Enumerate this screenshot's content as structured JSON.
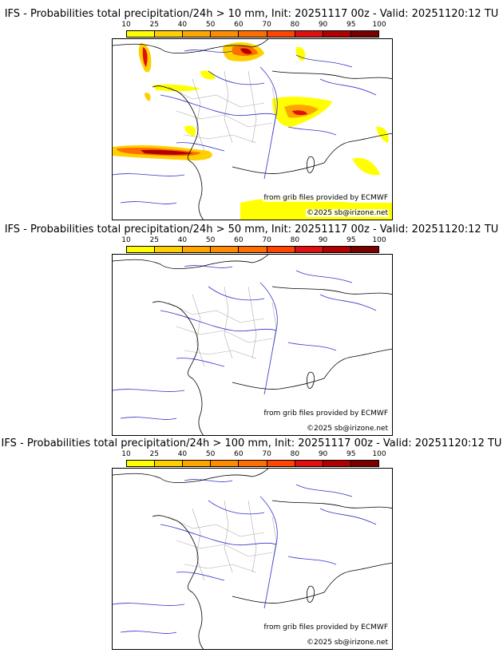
{
  "colorbar": {
    "ticks": [
      "10",
      "25",
      "40",
      "50",
      "60",
      "70",
      "80",
      "90",
      "95",
      "100"
    ],
    "colors": [
      "#ffff00",
      "#ffd000",
      "#ffa500",
      "#ff8c00",
      "#ff6e00",
      "#ff4500",
      "#e01010",
      "#b00000",
      "#7a0000"
    ]
  },
  "credits": {
    "source": "from grib files provided by ECMWF",
    "copyright": "©2025 sb@irizone.net"
  },
  "panels": [
    {
      "title": "IFS - Probabilities total precipitation/24h > 10 mm, Init: 20251117 00z - Valid: 20251120:12 TU"
    },
    {
      "title": "IFS - Probabilities total precipitation/24h > 50 mm, Init: 20251117 00z - Valid: 20251120:12 TU"
    },
    {
      "title": "IFS - Probabilities total precipitation/24h > 100 mm, Init: 20251117 00z - Valid: 20251120:12 TU"
    }
  ],
  "colors": {
    "coast": "#000000",
    "rivers": "#3333cc",
    "admin": "#aaaaaa"
  }
}
